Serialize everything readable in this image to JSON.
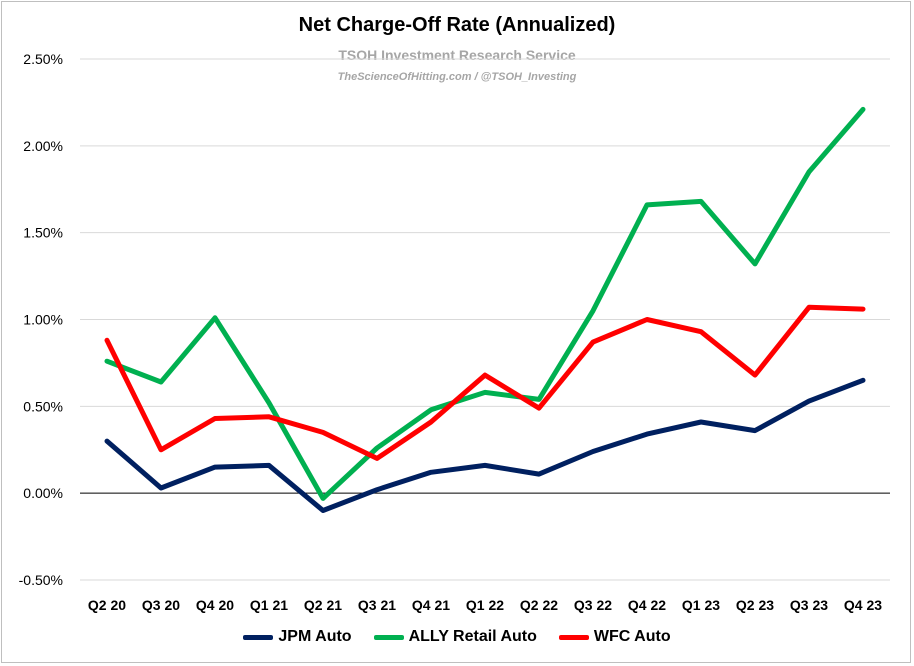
{
  "chart_data": {
    "type": "line",
    "title": "Net Charge-Off Rate (Annualized)",
    "subtitle": "TSOH Investment Research Service",
    "credit": "TheScienceOfHitting.com / @TSOH_Investing",
    "categories": [
      "Q2 20",
      "Q3 20",
      "Q4 20",
      "Q1 21",
      "Q2 21",
      "Q3 21",
      "Q4 21",
      "Q1 22",
      "Q2 22",
      "Q3 22",
      "Q4 22",
      "Q1 23",
      "Q2 23",
      "Q3 23",
      "Q4 23"
    ],
    "yticks": [
      "2.50%",
      "2.00%",
      "1.50%",
      "1.00%",
      "0.50%",
      "0.00%",
      "-0.50%"
    ],
    "ylim": [
      -0.5,
      2.5
    ],
    "grid": true,
    "legend_position": "bottom",
    "series": [
      {
        "name": "JPM Auto",
        "color": "#002060",
        "values": [
          0.3,
          0.03,
          0.15,
          0.16,
          -0.1,
          0.02,
          0.12,
          0.16,
          0.11,
          0.24,
          0.34,
          0.41,
          0.36,
          0.53,
          0.65
        ]
      },
      {
        "name": "ALLY Retail Auto",
        "color": "#00b050",
        "values": [
          0.76,
          0.64,
          1.01,
          0.52,
          -0.03,
          0.26,
          0.48,
          0.58,
          0.54,
          1.05,
          1.66,
          1.68,
          1.32,
          1.85,
          2.21
        ]
      },
      {
        "name": "WFC Auto",
        "color": "#ff0000",
        "values": [
          0.88,
          0.25,
          0.43,
          0.44,
          0.35,
          0.2,
          0.41,
          0.68,
          0.49,
          0.87,
          1.0,
          0.93,
          0.68,
          1.07,
          1.06
        ]
      }
    ]
  }
}
